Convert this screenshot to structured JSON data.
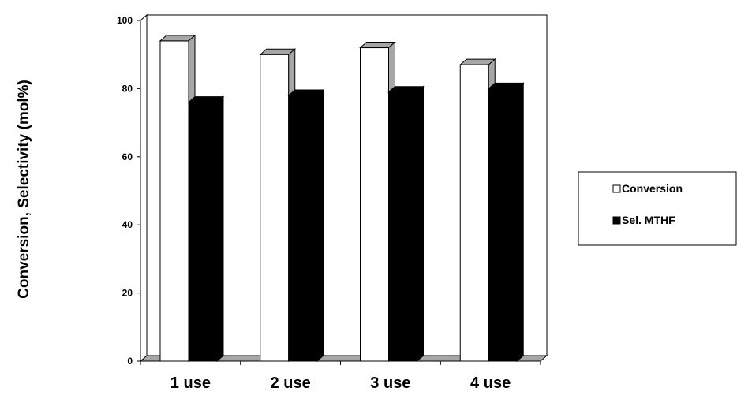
{
  "chart_data": {
    "type": "bar",
    "categories": [
      "1 use",
      "2 use",
      "3 use",
      "4 use"
    ],
    "series": [
      {
        "name": "Conversion",
        "values": [
          94,
          90,
          92,
          87
        ],
        "color": "#ffffff"
      },
      {
        "name": "Sel. MTHF",
        "values": [
          76,
          78,
          79,
          80
        ],
        "color": "#000000"
      }
    ],
    "xlabel": "",
    "ylabel": "Conversion, Selectivity (mol%)",
    "ylim": [
      0,
      100
    ],
    "yticks": [
      0,
      20,
      40,
      60,
      80,
      100
    ],
    "legend_position": "right",
    "grid": false,
    "style": "3d-bar",
    "side_color": "#a6a6a6"
  }
}
